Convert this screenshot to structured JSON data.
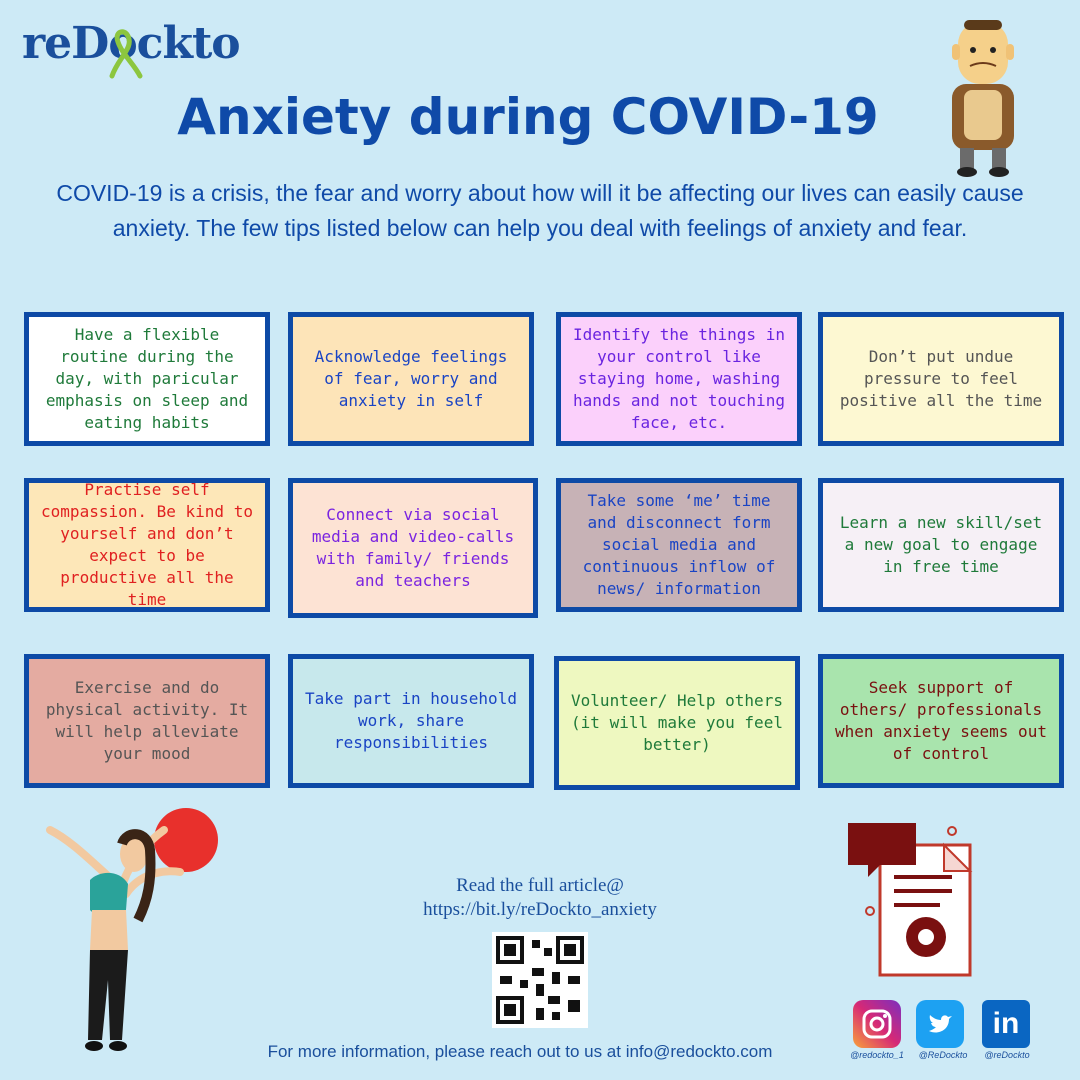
{
  "brand": {
    "logo_text": "reDockto"
  },
  "title": "Anxiety during COVID-19",
  "intro": "COVID-19 is a crisis, the fear and worry about how will it be affecting our lives can easily cause anxiety. The few tips listed below can help you deal with feelings of anxiety and fear.",
  "tips": [
    {
      "text": "Have a flexible routine during the day, with paricular emphasis on sleep and eating habits",
      "bg": "#ffffff",
      "color": "#1f7a3a"
    },
    {
      "text": "Acknowledge feelings of fear, worry and anxiety in self",
      "bg": "#fde4b8",
      "color": "#1a44c4"
    },
    {
      "text": "Identify the things in your control like staying home, washing hands and not touching face, etc.",
      "bg": "#fbd0fb",
      "color": "#6a24e0"
    },
    {
      "text": "Don’t put undue pressure to feel positive all the time",
      "bg": "#fdf8d2",
      "color": "#555555"
    },
    {
      "text": "Practise self compassion. Be kind to yourself and don’t expect to be productive all the time",
      "bg": "#fde7b8",
      "color": "#e02020"
    },
    {
      "text": "Connect via social media and video-calls with family/ friends and teachers",
      "bg": "#fde3d4",
      "color": "#7a24e0"
    },
    {
      "text": "Take some ‘me’ time and disconnect form social media and continuous inflow of news/ information",
      "bg": "#c7b2b6",
      "color": "#1a44c4"
    },
    {
      "text": "Learn a new skill/set a new goal to engage in free time",
      "bg": "#f6f0f6",
      "color": "#1f7a3a"
    },
    {
      "text": "Exercise and do physical activity. It will help alleviate your mood",
      "bg": "#e4aba1",
      "color": "#555555"
    },
    {
      "text": "Take part in household work, share responsibilities",
      "bg": "#c7e8ec",
      "color": "#1a44c4"
    },
    {
      "text": "Volunteer/ Help others (it will make you feel better)",
      "bg": "#eef8c0",
      "color": "#1f7a3a"
    },
    {
      "text": "Seek support of others/ professionals when anxiety seems out of control",
      "bg": "#a9e4ad",
      "color": "#7a1010"
    }
  ],
  "footer": {
    "read_label": "Read the full article@",
    "url": "https://bit.ly/reDockto_anxiety",
    "contact": "For more information, please reach out to us at info@redockto.com"
  },
  "social": [
    {
      "icon": "instagram-icon",
      "handle": "@redockto_1",
      "color": "#c13584"
    },
    {
      "icon": "twitter-icon",
      "handle": "@ReDockto",
      "color": "#1da1f2"
    },
    {
      "icon": "linkedin-icon",
      "handle": "@reDockto",
      "color": "#0a66c2"
    }
  ]
}
